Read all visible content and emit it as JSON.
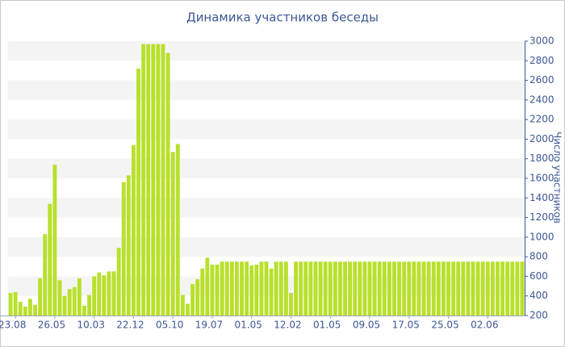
{
  "chart_data": {
    "type": "bar",
    "title": "Динамика участников беседы",
    "y_label": "Число участников",
    "categories": [
      null,
      "23.08",
      null,
      null,
      null,
      null,
      null,
      null,
      null,
      "26.05",
      null,
      null,
      null,
      null,
      null,
      null,
      null,
      "10.03",
      null,
      null,
      null,
      null,
      null,
      null,
      null,
      "22.12",
      null,
      null,
      null,
      null,
      null,
      null,
      null,
      "05.10",
      null,
      null,
      null,
      null,
      null,
      null,
      null,
      "19.07",
      null,
      null,
      null,
      null,
      null,
      null,
      null,
      "01.05",
      null,
      null,
      null,
      null,
      null,
      null,
      null,
      "12.02",
      null,
      null,
      null,
      null,
      null,
      null,
      null,
      "01.05",
      null,
      null,
      null,
      null,
      null,
      null,
      null,
      "09.05",
      null,
      null,
      null,
      null,
      null,
      null,
      null,
      "17.05",
      null,
      null,
      null,
      null,
      null,
      null,
      null,
      "25.05",
      null,
      null,
      null,
      null,
      null,
      null,
      null,
      "02.06",
      null,
      null,
      null,
      null,
      null,
      null,
      null
    ],
    "values": [
      430,
      440,
      340,
      290,
      370,
      310,
      580,
      1030,
      1340,
      1740,
      560,
      400,
      470,
      490,
      580,
      300,
      410,
      600,
      640,
      610,
      650,
      650,
      890,
      1560,
      1630,
      1940,
      2720,
      2970,
      2970,
      2970,
      2970,
      2970,
      2880,
      1870,
      1950,
      410,
      320,
      520,
      570,
      680,
      790,
      720,
      720,
      750,
      750,
      750,
      750,
      750,
      750,
      710,
      720,
      750,
      750,
      680,
      750,
      750,
      750,
      430,
      750,
      750,
      750,
      750,
      750,
      750,
      750,
      750,
      750,
      750,
      750,
      750,
      750,
      750,
      750,
      750,
      750,
      750,
      750,
      750,
      750,
      750,
      750,
      750,
      750,
      750,
      750,
      750,
      750,
      750,
      750,
      750,
      750,
      750,
      750,
      750,
      750,
      750,
      750,
      750,
      750,
      750,
      750,
      750,
      750,
      750,
      750
    ],
    "color": "#b8e02c",
    "ylim": [
      200,
      3000
    ],
    "yticks": [
      200,
      400,
      600,
      800,
      1000,
      1200,
      1400,
      1600,
      1800,
      2000,
      2200,
      2400,
      2600,
      2800,
      3000
    ],
    "grid": true
  }
}
